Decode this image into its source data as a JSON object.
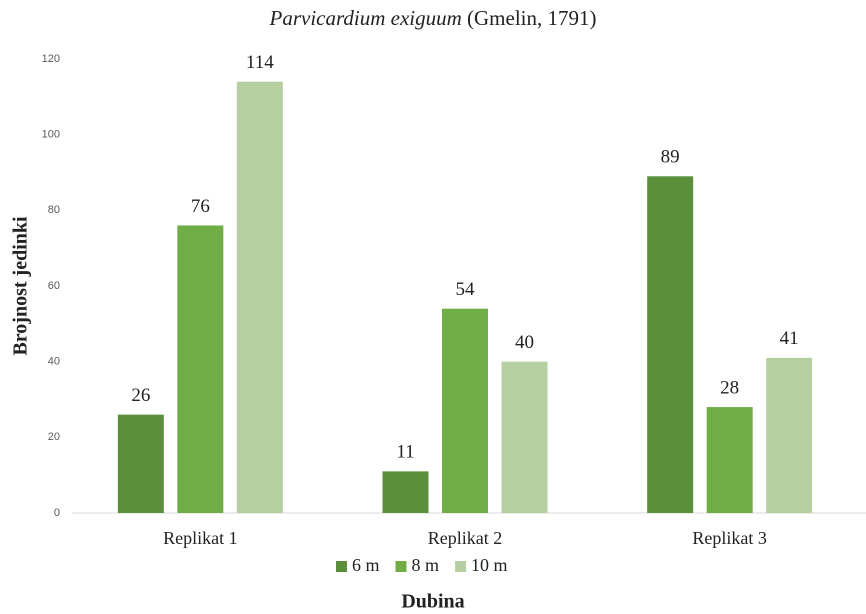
{
  "chart_data": {
    "type": "bar",
    "title": [
      "Parvicardium exiguum",
      "(Gmelin, 1791)"
    ],
    "ylabel": "Brojnost jedinki",
    "xlabel": "Dubina",
    "categories": [
      "Replikat 1",
      "Replikat 2",
      "Replikat 3"
    ],
    "series": [
      {
        "name": "6 m",
        "color": "#5b8f3b",
        "values": [
          26,
          11,
          89
        ]
      },
      {
        "name": "8 m",
        "color": "#70ad47",
        "values": [
          76,
          54,
          28
        ]
      },
      {
        "name": "10 m",
        "color": "#b6cfa2",
        "values": [
          114,
          40,
          41
        ]
      }
    ],
    "ylim": [
      0,
      120
    ],
    "yticks": [
      0,
      20,
      40,
      60,
      80,
      100,
      120
    ],
    "grid": false,
    "legend": "bottom"
  }
}
